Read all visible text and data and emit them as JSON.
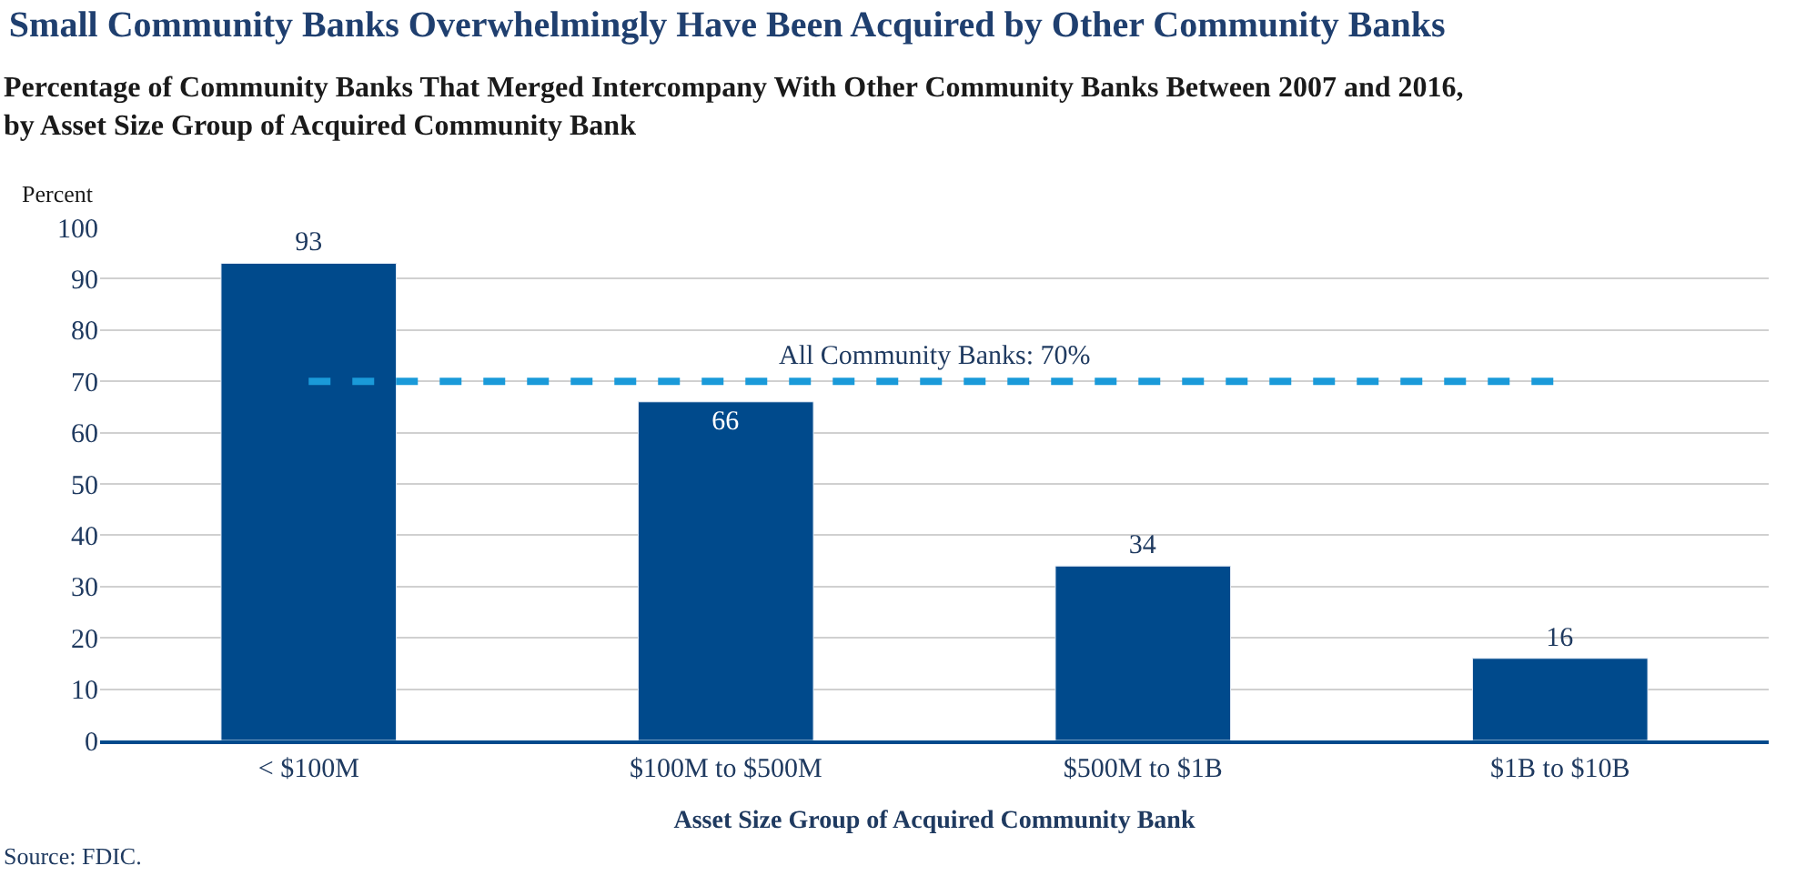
{
  "chart_data": {
    "type": "bar",
    "title": "Small Community Banks Overwhelmingly Have Been Acquired by Other Community Banks",
    "subtitle": "Percentage of Community Banks That Merged Intercompany With Other Community Banks Between 2007 and 2016,\nby Asset Size Group of Acquired Community Bank",
    "ylabel": "Percent",
    "xlabel": "Asset Size Group of Acquired Community Bank",
    "categories": [
      "< $100M",
      "$100M to $500M",
      "$500M to $1B",
      "$1B to $10B"
    ],
    "values": [
      93,
      66,
      34,
      16
    ],
    "color": "#004a8c",
    "ylim": [
      0,
      100
    ],
    "yticks": [
      0,
      10,
      20,
      30,
      40,
      50,
      60,
      70,
      80,
      90,
      100
    ],
    "grid": "y",
    "data_labels": true,
    "ref_lines": [
      {
        "axis": "y",
        "value": 70,
        "label": "All Community Banks: 70%",
        "color": "#1a9ad9",
        "line_style": "dashed"
      }
    ],
    "annotations": [
      "Source: FDIC."
    ]
  }
}
